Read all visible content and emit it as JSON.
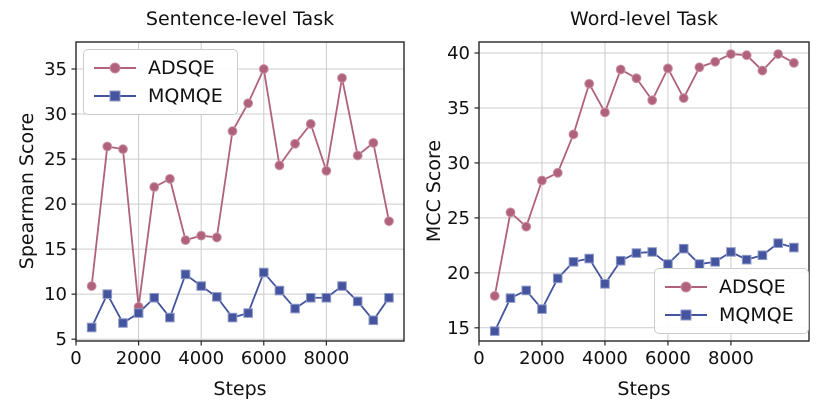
{
  "figure": {
    "background": "#ffffff"
  },
  "chart_data": [
    {
      "type": "line",
      "title": "Sentence-level Task",
      "xlabel": "Steps",
      "ylabel": "Spearman Score",
      "x": [
        500,
        1000,
        1500,
        2000,
        2500,
        3000,
        3500,
        4000,
        4500,
        5000,
        5500,
        6000,
        6500,
        7000,
        7500,
        8000,
        8500,
        9000,
        9500,
        10000
      ],
      "series": [
        {
          "name": "ADSQE",
          "color": "#b0617c",
          "marker_edge": "#c990a4",
          "marker": "circle",
          "values": [
            10.9,
            26.4,
            26.1,
            8.6,
            21.9,
            22.8,
            16.0,
            16.5,
            16.3,
            28.1,
            31.2,
            35.0,
            24.3,
            26.7,
            28.9,
            23.7,
            34.0,
            25.4,
            26.8,
            18.1
          ]
        },
        {
          "name": "MQMQE",
          "color": "#44549e",
          "marker_edge": "#8f9ac9",
          "marker": "square",
          "values": [
            6.3,
            10.0,
            6.8,
            7.9,
            9.6,
            7.4,
            12.2,
            10.9,
            9.7,
            7.4,
            7.9,
            12.4,
            10.4,
            8.4,
            9.6,
            9.6,
            10.9,
            9.2,
            7.1,
            9.6
          ]
        }
      ],
      "xlim": [
        0,
        10480
      ],
      "ylim": [
        4.8,
        38.0
      ],
      "xticks": [
        0,
        2000,
        4000,
        6000,
        8000
      ],
      "yticks": [
        5,
        10,
        15,
        20,
        25,
        30,
        35
      ],
      "grid": true,
      "legend_position": "upper-left"
    },
    {
      "type": "line",
      "title": "Word-level Task",
      "xlabel": "Steps",
      "ylabel": "MCC Score",
      "x": [
        500,
        1000,
        1500,
        2000,
        2500,
        3000,
        3500,
        4000,
        4500,
        5000,
        5500,
        6000,
        6500,
        7000,
        7500,
        8000,
        8500,
        9000,
        9500,
        10000
      ],
      "series": [
        {
          "name": "ADSQE",
          "color": "#b0617c",
          "marker_edge": "#c990a4",
          "marker": "circle",
          "values": [
            17.9,
            25.5,
            24.2,
            28.4,
            29.1,
            32.6,
            37.2,
            34.6,
            38.5,
            37.7,
            35.7,
            38.6,
            35.9,
            38.7,
            39.2,
            39.9,
            39.8,
            38.4,
            39.9,
            39.1
          ]
        },
        {
          "name": "MQMQE",
          "color": "#44549e",
          "marker_edge": "#8f9ac9",
          "marker": "square",
          "values": [
            14.7,
            17.7,
            18.4,
            16.7,
            19.5,
            21.0,
            21.3,
            19.0,
            21.1,
            21.8,
            21.9,
            20.8,
            22.2,
            20.8,
            21.0,
            21.9,
            21.2,
            21.6,
            22.7,
            22.3
          ]
        }
      ],
      "xlim": [
        0,
        10480
      ],
      "ylim": [
        13.8,
        41.0
      ],
      "xticks": [
        0,
        2000,
        4000,
        6000,
        8000
      ],
      "yticks": [
        15,
        20,
        25,
        30,
        35,
        40
      ],
      "grid": true,
      "legend_position": "lower-right"
    }
  ],
  "style": {
    "grid_color": "#cccccc",
    "spine_color": "#262626",
    "tick_label_color": "#111111"
  }
}
